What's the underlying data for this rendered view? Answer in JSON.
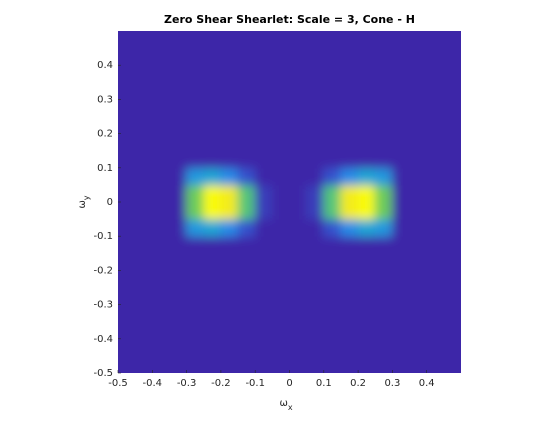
{
  "chart_data": {
    "type": "heatmap",
    "title": "Zero Shear Shearlet: Scale = 3, Cone - H",
    "xlabel": "ω",
    "xlabel_subscript": "x",
    "ylabel": "ω",
    "ylabel_subscript": "y",
    "xlim": [
      -0.5,
      0.5
    ],
    "ylim": [
      -0.5,
      0.5
    ],
    "xticks": [
      -0.5,
      -0.4,
      -0.3,
      -0.2,
      -0.1,
      0,
      0.1,
      0.2,
      0.3,
      0.4
    ],
    "yticks": [
      -0.5,
      -0.4,
      -0.3,
      -0.2,
      -0.1,
      0,
      0.1,
      0.2,
      0.3,
      0.4
    ],
    "colormap": [
      "#3e26a8",
      "#2e7ff1",
      "#13b3cd",
      "#6bcc5c",
      "#e0b93c",
      "#f9fb0e"
    ],
    "x": [
      -0.475,
      -0.425,
      -0.375,
      -0.325,
      -0.275,
      -0.225,
      -0.175,
      -0.125,
      -0.075,
      -0.025,
      0.025,
      0.075,
      0.125,
      0.175,
      0.225,
      0.275,
      0.325,
      0.375,
      0.425,
      0.475
    ],
    "y": [
      -0.475,
      -0.425,
      -0.375,
      -0.325,
      -0.275,
      -0.225,
      -0.175,
      -0.125,
      -0.075,
      -0.025,
      0.025,
      0.075,
      0.125,
      0.175,
      0.225,
      0.275,
      0.325,
      0.375,
      0.425,
      0.475
    ],
    "z": [
      [
        0,
        0,
        0,
        0,
        0,
        0,
        0,
        0,
        0,
        0,
        0,
        0,
        0,
        0,
        0,
        0,
        0,
        0,
        0,
        0
      ],
      [
        0,
        0,
        0,
        0,
        0,
        0,
        0,
        0,
        0,
        0,
        0,
        0,
        0,
        0,
        0,
        0,
        0,
        0,
        0,
        0
      ],
      [
        0,
        0,
        0,
        0,
        0,
        0,
        0,
        0,
        0,
        0,
        0,
        0,
        0,
        0,
        0,
        0,
        0,
        0,
        0,
        0
      ],
      [
        0,
        0,
        0,
        0,
        0,
        0,
        0,
        0,
        0,
        0,
        0,
        0,
        0,
        0,
        0,
        0,
        0,
        0,
        0,
        0
      ],
      [
        0,
        0,
        0,
        0,
        0,
        0,
        0,
        0,
        0,
        0,
        0,
        0,
        0,
        0,
        0,
        0,
        0,
        0,
        0,
        0
      ],
      [
        0,
        0,
        0,
        0,
        0,
        0,
        0,
        0,
        0,
        0,
        0,
        0,
        0,
        0,
        0,
        0,
        0,
        0,
        0,
        0
      ],
      [
        0,
        0,
        0,
        0,
        0,
        0,
        0,
        0,
        0,
        0,
        0,
        0,
        0,
        0,
        0,
        0,
        0,
        0,
        0,
        0
      ],
      [
        0,
        0,
        0,
        0,
        0,
        0,
        0,
        0,
        0,
        0,
        0,
        0,
        0,
        0,
        0,
        0,
        0,
        0,
        0,
        0
      ],
      [
        0,
        0,
        0,
        0,
        0.3,
        0.35,
        0.25,
        0.1,
        0,
        0,
        0,
        0,
        0.1,
        0.25,
        0.35,
        0.3,
        0,
        0,
        0,
        0
      ],
      [
        0,
        0,
        0,
        0,
        0.6,
        1,
        0.95,
        0.55,
        0.05,
        0,
        0,
        0.05,
        0.55,
        0.95,
        1,
        0.6,
        0,
        0,
        0,
        0
      ],
      [
        0,
        0,
        0,
        0,
        0.6,
        1,
        0.95,
        0.55,
        0.05,
        0,
        0,
        0.05,
        0.55,
        0.95,
        1,
        0.6,
        0,
        0,
        0,
        0
      ],
      [
        0,
        0,
        0,
        0,
        0.3,
        0.35,
        0.25,
        0.1,
        0,
        0,
        0,
        0,
        0.1,
        0.25,
        0.35,
        0.3,
        0,
        0,
        0,
        0
      ],
      [
        0,
        0,
        0,
        0,
        0,
        0,
        0,
        0,
        0,
        0,
        0,
        0,
        0,
        0,
        0,
        0,
        0,
        0,
        0,
        0
      ],
      [
        0,
        0,
        0,
        0,
        0,
        0,
        0,
        0,
        0,
        0,
        0,
        0,
        0,
        0,
        0,
        0,
        0,
        0,
        0,
        0
      ],
      [
        0,
        0,
        0,
        0,
        0,
        0,
        0,
        0,
        0,
        0,
        0,
        0,
        0,
        0,
        0,
        0,
        0,
        0,
        0,
        0
      ],
      [
        0,
        0,
        0,
        0,
        0,
        0,
        0,
        0,
        0,
        0,
        0,
        0,
        0,
        0,
        0,
        0,
        0,
        0,
        0,
        0
      ],
      [
        0,
        0,
        0,
        0,
        0,
        0,
        0,
        0,
        0,
        0,
        0,
        0,
        0,
        0,
        0,
        0,
        0,
        0,
        0,
        0
      ],
      [
        0,
        0,
        0,
        0,
        0,
        0,
        0,
        0,
        0,
        0,
        0,
        0,
        0,
        0,
        0,
        0,
        0,
        0,
        0,
        0
      ],
      [
        0,
        0,
        0,
        0,
        0,
        0,
        0,
        0,
        0,
        0,
        0,
        0,
        0,
        0,
        0,
        0,
        0,
        0,
        0,
        0
      ],
      [
        0,
        0,
        0,
        0,
        0,
        0,
        0,
        0,
        0,
        0,
        0,
        0,
        0,
        0,
        0,
        0,
        0,
        0,
        0,
        0
      ]
    ]
  }
}
